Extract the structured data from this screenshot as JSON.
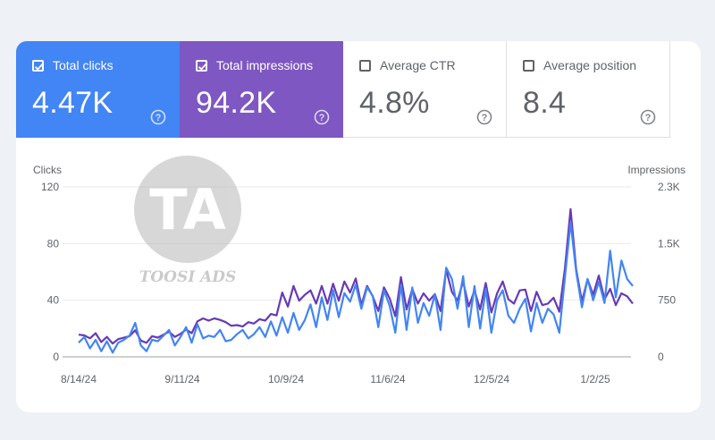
{
  "metrics": [
    {
      "label": "Total clicks",
      "value": "4.47K",
      "checked": true,
      "color": "#4285f4"
    },
    {
      "label": "Total impressions",
      "value": "94.2K",
      "checked": true,
      "color": "#7e57c2"
    },
    {
      "label": "Average CTR",
      "value": "4.8%",
      "checked": false
    },
    {
      "label": "Average position",
      "value": "8.4",
      "checked": false
    }
  ],
  "watermark": {
    "text": "TOOSI ADS",
    "logo": "TA"
  },
  "chart_data": {
    "type": "line",
    "y_left_label": "Clicks",
    "y_right_label": "Impressions",
    "y_left_ticks": [
      "0",
      "40",
      "80",
      "120"
    ],
    "y_right_ticks": [
      "0",
      "750",
      "1.5K",
      "2.3K"
    ],
    "ylim_left": [
      0,
      120
    ],
    "ylim_right": [
      0,
      2300
    ],
    "x_ticks": [
      "8/14/24",
      "9/11/24",
      "10/9/24",
      "11/6/24",
      "12/5/24",
      "1/2/25"
    ],
    "grid": true,
    "series": [
      {
        "name": "Clicks",
        "axis": "left",
        "color": "#4285f4",
        "values": [
          10,
          14,
          6,
          12,
          4,
          11,
          3,
          10,
          12,
          15,
          24,
          8,
          4,
          12,
          11,
          15,
          19,
          8,
          14,
          21,
          10,
          23,
          13,
          15,
          14,
          19,
          11,
          12,
          16,
          19,
          13,
          16,
          21,
          14,
          25,
          15,
          28,
          17,
          31,
          19,
          26,
          37,
          21,
          42,
          26,
          47,
          28,
          45,
          39,
          51,
          34,
          49,
          43,
          21,
          47,
          36,
          17,
          51,
          19,
          49,
          24,
          38,
          29,
          44,
          19,
          63,
          55,
          34,
          57,
          21,
          50,
          20,
          48,
          17,
          40,
          47,
          29,
          24,
          34,
          41,
          18,
          38,
          24,
          34,
          30,
          17,
          56,
          95,
          60,
          35,
          55,
          40,
          53,
          38,
          75,
          42,
          68,
          55,
          50
        ]
      },
      {
        "name": "Impressions",
        "axis": "right",
        "color": "#673ab7",
        "values": [
          300,
          290,
          250,
          320,
          200,
          270,
          180,
          240,
          260,
          280,
          360,
          220,
          190,
          280,
          260,
          300,
          340,
          270,
          310,
          370,
          320,
          480,
          520,
          490,
          520,
          500,
          470,
          420,
          430,
          410,
          470,
          450,
          510,
          490,
          580,
          560,
          870,
          680,
          960,
          760,
          840,
          900,
          720,
          960,
          720,
          990,
          760,
          1020,
          870,
          1060,
          700,
          960,
          820,
          620,
          940,
          790,
          550,
          1080,
          640,
          920,
          720,
          860,
          760,
          850,
          620,
          1180,
          880,
          760,
          1020,
          680,
          900,
          640,
          1000,
          600,
          860,
          1020,
          780,
          720,
          900,
          910,
          620,
          880,
          700,
          720,
          800,
          610,
          1200,
          2000,
          1180,
          750,
          1050,
          840,
          1100,
          780,
          920,
          700,
          860,
          820,
          720
        ]
      }
    ]
  }
}
